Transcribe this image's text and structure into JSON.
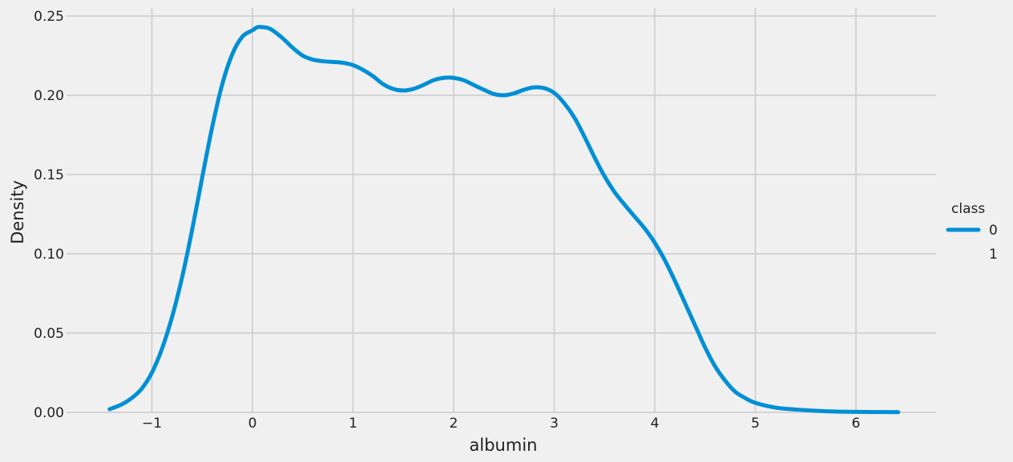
{
  "chart_data": {
    "type": "line",
    "xlabel": "albumin",
    "ylabel": "Density",
    "xlim": [
      -1.5,
      6.8
    ],
    "ylim": [
      0,
      0.25
    ],
    "grid": true,
    "legend_placement": "right",
    "xticks": [
      {
        "value": -1,
        "label": "−1"
      },
      {
        "value": 0,
        "label": "0"
      },
      {
        "value": 1,
        "label": "1"
      },
      {
        "value": 2,
        "label": "2"
      },
      {
        "value": 3,
        "label": "3"
      },
      {
        "value": 4,
        "label": "4"
      },
      {
        "value": 5,
        "label": "5"
      },
      {
        "value": 6,
        "label": "6"
      }
    ],
    "yticks": [
      {
        "value": 0.0,
        "label": "0.00"
      },
      {
        "value": 0.05,
        "label": "0.05"
      },
      {
        "value": 0.1,
        "label": "0.10"
      },
      {
        "value": 0.15,
        "label": "0.15"
      },
      {
        "value": 0.2,
        "label": "0.20"
      },
      {
        "value": 0.25,
        "label": "0.25"
      }
    ],
    "legend": {
      "title": "class",
      "entries": [
        {
          "label": "0",
          "color": "#008fd5",
          "has_line": true
        },
        {
          "label": "1",
          "color": "",
          "has_line": false
        }
      ]
    },
    "series": [
      {
        "name": "0",
        "color": "#008fd5",
        "x": [
          -1.42,
          -1.3,
          -1.2,
          -1.1,
          -1.0,
          -0.9,
          -0.8,
          -0.7,
          -0.6,
          -0.5,
          -0.4,
          -0.3,
          -0.2,
          -0.1,
          0.0,
          0.05,
          0.1,
          0.15,
          0.2,
          0.3,
          0.4,
          0.5,
          0.6,
          0.7,
          0.8,
          0.9,
          1.0,
          1.1,
          1.2,
          1.3,
          1.4,
          1.5,
          1.6,
          1.7,
          1.8,
          1.9,
          2.0,
          2.1,
          2.2,
          2.3,
          2.4,
          2.5,
          2.6,
          2.7,
          2.8,
          2.9,
          3.0,
          3.1,
          3.2,
          3.3,
          3.4,
          3.5,
          3.6,
          3.7,
          3.8,
          3.9,
          4.0,
          4.1,
          4.2,
          4.3,
          4.4,
          4.5,
          4.6,
          4.7,
          4.8,
          4.9,
          5.0,
          5.2,
          5.4,
          5.6,
          5.8,
          6.0,
          6.2,
          6.42
        ],
        "values": [
          0.002,
          0.005,
          0.009,
          0.015,
          0.025,
          0.04,
          0.06,
          0.085,
          0.115,
          0.148,
          0.18,
          0.207,
          0.226,
          0.237,
          0.241,
          0.243,
          0.243,
          0.2425,
          0.241,
          0.236,
          0.23,
          0.225,
          0.2225,
          0.2215,
          0.221,
          0.2205,
          0.219,
          0.216,
          0.212,
          0.207,
          0.204,
          0.203,
          0.204,
          0.2065,
          0.2095,
          0.211,
          0.211,
          0.2095,
          0.2065,
          0.2035,
          0.2008,
          0.2,
          0.2012,
          0.2035,
          0.205,
          0.2045,
          0.2015,
          0.195,
          0.186,
          0.174,
          0.161,
          0.149,
          0.139,
          0.131,
          0.1235,
          0.116,
          0.107,
          0.096,
          0.083,
          0.069,
          0.055,
          0.041,
          0.029,
          0.02,
          0.013,
          0.009,
          0.006,
          0.003,
          0.0018,
          0.001,
          0.0005,
          0.0003,
          0.0002,
          0.0001
        ]
      }
    ]
  }
}
